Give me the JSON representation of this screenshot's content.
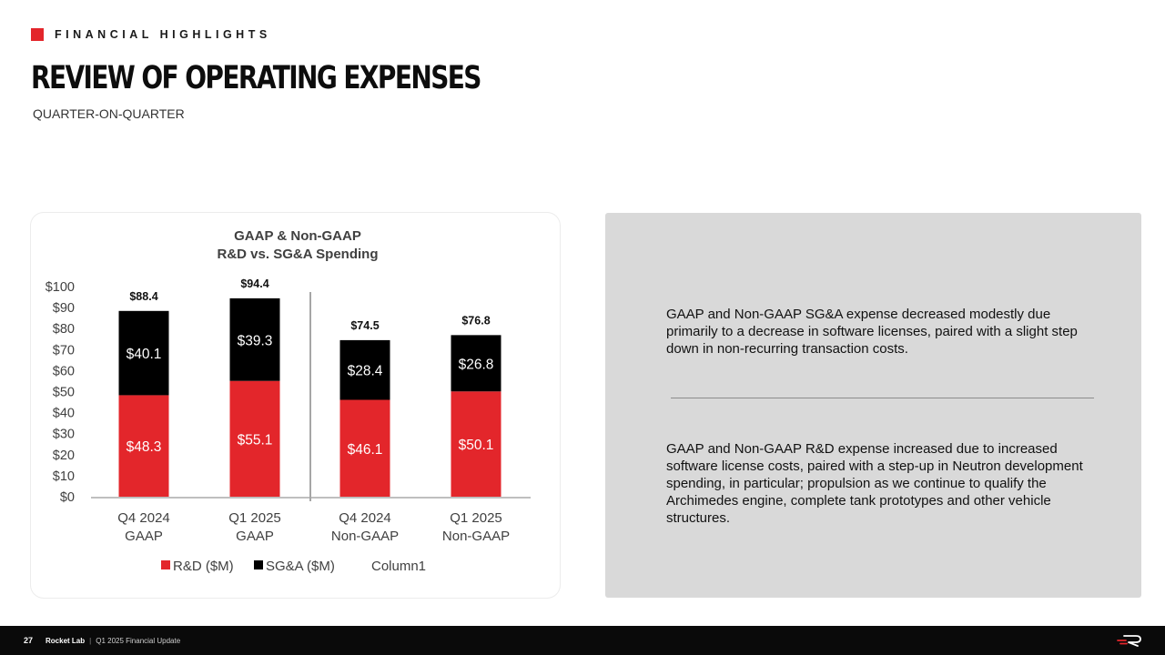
{
  "header": {
    "kicker": "FINANCIAL HIGHLIGHTS",
    "title": "REVIEW OF OPERATING EXPENSES",
    "subtitle": "QUARTER-ON-QUARTER"
  },
  "chart_data": {
    "type": "bar",
    "stacked": true,
    "title": "GAAP & Non-GAAP R&D vs. SG&A Spending",
    "title_lines": [
      "GAAP & Non-GAAP",
      "R&D vs. SG&A Spending"
    ],
    "categories": [
      [
        "Q4 2024",
        "GAAP"
      ],
      [
        "Q1 2025",
        "GAAP"
      ],
      [
        "Q4 2024",
        "Non-GAAP"
      ],
      [
        "Q1 2025",
        "Non-GAAP"
      ]
    ],
    "series": [
      {
        "name": "R&D ($M)",
        "color": "#e3262b",
        "values": [
          48.3,
          55.1,
          46.1,
          50.1
        ],
        "labels": [
          "$48.3",
          "$55.1",
          "$46.1",
          "$50.1"
        ]
      },
      {
        "name": "SG&A ($M)",
        "color": "#000000",
        "values": [
          40.1,
          39.3,
          28.4,
          26.8
        ],
        "labels": [
          "$40.1",
          "$39.3",
          "$28.4",
          "$26.8"
        ]
      }
    ],
    "totals": [
      "$88.4",
      "$94.4",
      "$74.5",
      "$76.8"
    ],
    "legend_extra": "Column1",
    "y_ticks": [
      "$0",
      "$10",
      "$20",
      "$30",
      "$40",
      "$50",
      "$60",
      "$70",
      "$80",
      "$90",
      "$100"
    ],
    "ylim": [
      0,
      100
    ],
    "legend_position": "bottom",
    "grid": false
  },
  "notes": [
    "GAAP and Non-GAAP SG&A expense decreased modestly due primarily to a decrease in software licenses, paired with a slight step down in non-recurring transaction costs.",
    "GAAP and Non-GAAP R&D expense increased due to increased software license costs, paired with a step-up in Neutron development spending, in particular; propulsion as we continue to qualify the Archimedes engine, complete tank prototypes and other vehicle structures."
  ],
  "footer": {
    "page": "27",
    "company": "Rocket Lab",
    "separator": "|",
    "report": "Q1 2025 Financial Update"
  },
  "colors": {
    "accent": "#e3262b",
    "panel": "#d9d9d9",
    "footer": "#0a0a0a"
  }
}
